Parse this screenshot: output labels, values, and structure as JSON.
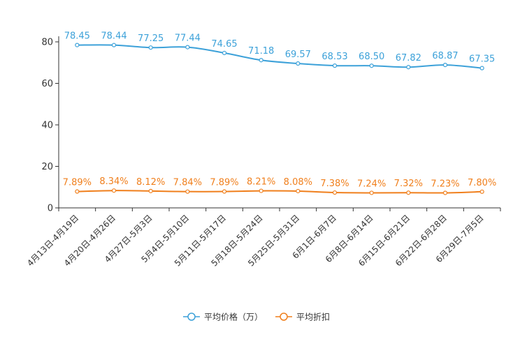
{
  "chart_data": {
    "type": "line",
    "categories": [
      "4月13日-4月19日",
      "4月20日-4月26日",
      "4月27日-5月3日",
      "5月4日-5月10日",
      "5月11日-5月17日",
      "5月18日-5月24日",
      "5月25日-5月31日",
      "6月1日-6月7日",
      "6月8日-6月14日",
      "6月15日-6月21日",
      "6月22日-6月28日",
      "6月29日-7月5日"
    ],
    "series": [
      {
        "name": "平均价格（万）",
        "color": "#3ca1d9",
        "values": [
          78.45,
          78.44,
          77.25,
          77.44,
          74.65,
          71.18,
          69.57,
          68.53,
          68.5,
          67.82,
          68.87,
          67.35
        ],
        "labels": [
          "78.45",
          "78.44",
          "77.25",
          "77.44",
          "74.65",
          "71.18",
          "69.57",
          "68.53",
          "68.50",
          "67.82",
          "68.87",
          "67.35"
        ]
      },
      {
        "name": "平均折扣",
        "color": "#f07f1c",
        "values": [
          7.89,
          8.34,
          8.12,
          7.84,
          7.89,
          8.21,
          8.08,
          7.38,
          7.24,
          7.32,
          7.23,
          7.8
        ],
        "labels": [
          "7.89%",
          "8.34%",
          "8.12%",
          "7.84%",
          "7.89%",
          "8.21%",
          "8.08%",
          "7.38%",
          "7.24%",
          "7.32%",
          "7.23%",
          "7.80%"
        ]
      }
    ],
    "yticks": [
      0,
      20,
      40,
      60,
      80
    ],
    "ytick_labels": [
      "0",
      "20",
      "40",
      "60",
      "80"
    ],
    "ylim": [
      0,
      80
    ],
    "title": "",
    "xlabel": "",
    "ylabel": "",
    "legend_position": "bottom-center",
    "grid": false
  }
}
